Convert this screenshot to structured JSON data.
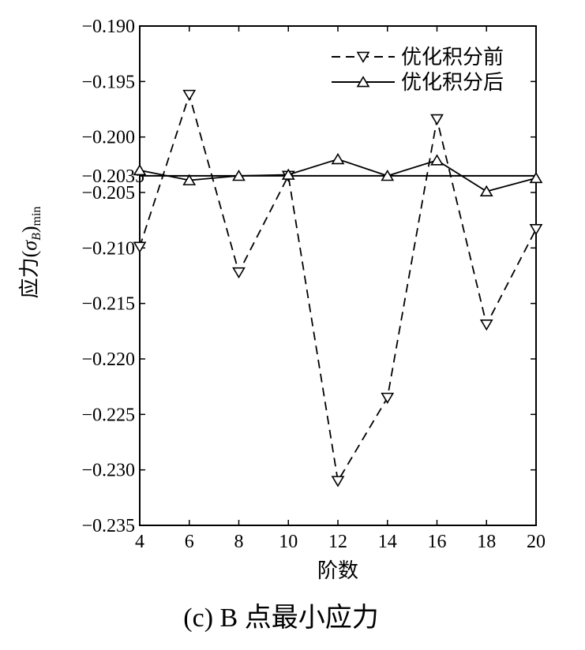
{
  "chart_data": {
    "type": "line",
    "x": [
      4,
      6,
      8,
      10,
      12,
      14,
      16,
      18,
      20
    ],
    "xticks": [
      "4",
      "6",
      "8",
      "10",
      "12",
      "14",
      "16",
      "18",
      "20"
    ],
    "yticks": [
      "-0.190",
      "-0.195",
      "-0.200",
      "-0.205",
      "-0.210",
      "-0.215",
      "-0.220",
      "-0.225",
      "-0.230",
      "-0.235"
    ],
    "ytick_values": [
      -0.19,
      -0.195,
      -0.2,
      -0.205,
      -0.21,
      -0.215,
      -0.22,
      -0.225,
      -0.23,
      -0.235
    ],
    "xlim": [
      4,
      20
    ],
    "ylim": [
      -0.235,
      -0.19
    ],
    "xlabel": "阶数",
    "ylabel_main": "应力(",
    "ylabel_sigma": "σ",
    "ylabel_sub_beta": "B",
    "ylabel_close": ")",
    "ylabel_sub_min": "min",
    "reference_line": {
      "value": -0.2035,
      "label": "−0.2035"
    },
    "series": [
      {
        "name": "优化积分前",
        "marker": "triangle-down",
        "dash": "dashed",
        "values": [
          -0.2099,
          -0.1962,
          -0.2122,
          -0.2035,
          -0.231,
          -0.2235,
          -0.1984,
          -0.2169,
          -0.2083
        ]
      },
      {
        "name": "优化积分后",
        "marker": "triangle-up",
        "dash": "solid",
        "values": [
          -0.203,
          -0.2039,
          -0.2035,
          -0.2034,
          -0.202,
          -0.2035,
          -0.2021,
          -0.2049,
          -0.2037
        ]
      }
    ],
    "grid": false,
    "legend_position": "top-right",
    "caption": "(c) B 点最小应力"
  }
}
